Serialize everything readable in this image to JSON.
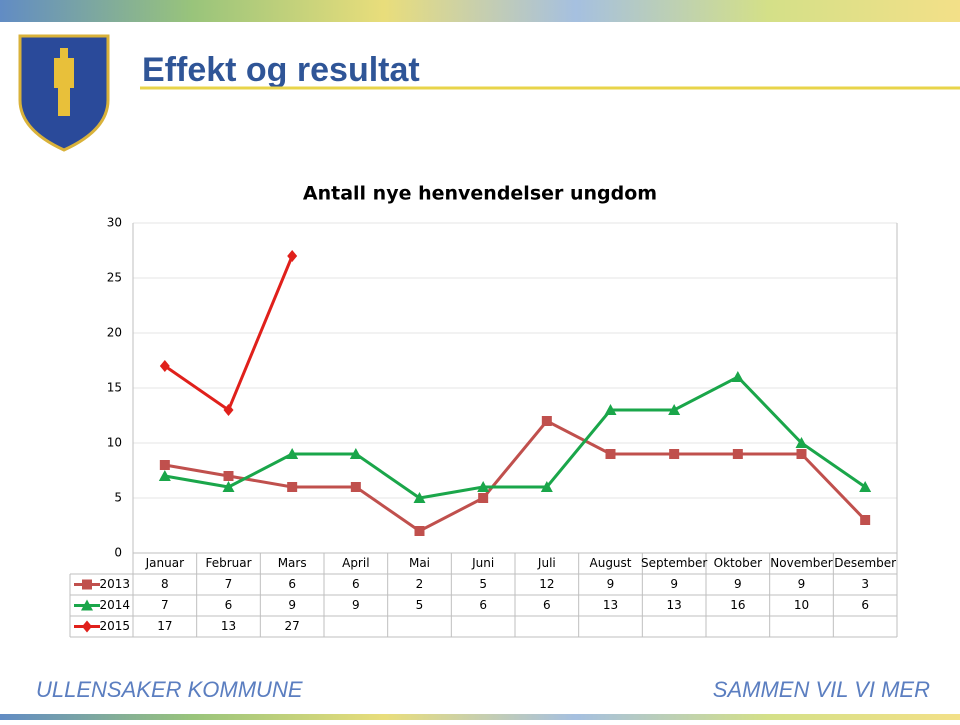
{
  "header": {
    "title": "Effekt og resultat"
  },
  "chart_data": {
    "type": "line",
    "title": "Antall nye henvendelser ungdom",
    "categories": [
      "Januar",
      "Februar",
      "Mars",
      "April",
      "Mai",
      "Juni",
      "Juli",
      "August",
      "September",
      "Oktober",
      "November",
      "Desember"
    ],
    "series": [
      {
        "name": "2013",
        "color": "#c0504d",
        "marker": "square",
        "values": [
          8,
          7,
          6,
          6,
          2,
          5,
          12,
          9,
          9,
          9,
          9,
          3
        ]
      },
      {
        "name": "2014",
        "color": "#1aa64a",
        "marker": "triangle",
        "values": [
          7,
          6,
          9,
          9,
          5,
          6,
          6,
          13,
          13,
          16,
          10,
          6
        ]
      },
      {
        "name": "2015",
        "color": "#e0201b",
        "marker": "diamond",
        "values": [
          17,
          13,
          27,
          null,
          null,
          null,
          null,
          null,
          null,
          null,
          null,
          null
        ]
      }
    ],
    "ylim": [
      0,
      30
    ],
    "yticks": [
      0,
      5,
      10,
      15,
      20,
      25,
      30
    ],
    "grid": true
  },
  "footer": {
    "left": "ULLENSAKER KOMMUNE",
    "right": "SAMMEN VIL VI MER"
  }
}
